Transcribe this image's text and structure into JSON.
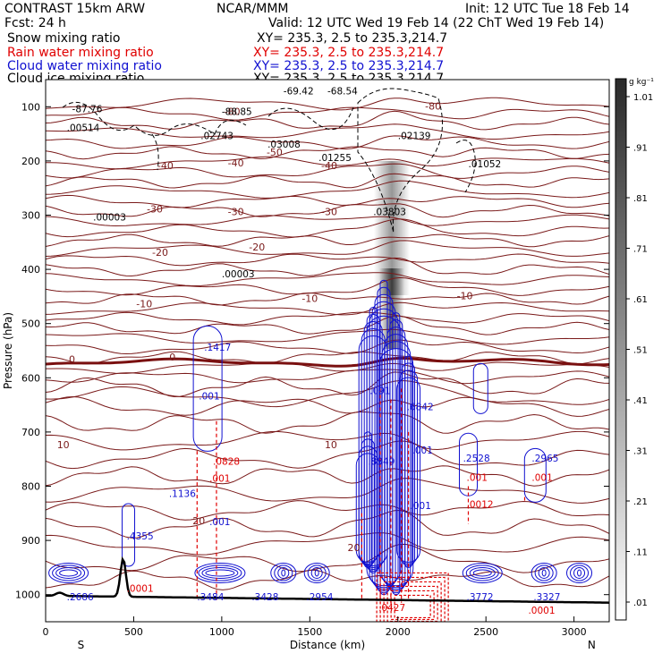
{
  "header": {
    "model": "CONTRAST 15km ARW",
    "agency": "NCAR/MMM",
    "init": "Init: 12 UTC Tue 18 Feb 14",
    "fcst": "Fcst:   24 h",
    "valid": "Valid: 12 UTC Wed 19 Feb 14 (22 ChT Wed 19 Feb 14)",
    "rows": [
      {
        "label": "Snow mixing ratio",
        "xy": "XY= 235.3,  2.5 to 235.3,214.7",
        "color": "#000000"
      },
      {
        "label": "Rain water mixing ratio",
        "xy": "XY= 235.3,  2.5 to 235.3,214.7",
        "color": "#e00000"
      },
      {
        "label": "Cloud water mixing ratio",
        "xy": "XY= 235.3,  2.5 to 235.3,214.7",
        "color": "#1010d0"
      },
      {
        "label": "Cloud ice mixing ratio",
        "xy": "XY= 235.3,  2.5 to 235.3,214.7",
        "color": "#000000"
      }
    ]
  },
  "chart_data": {
    "type": "cross-section",
    "title": "CONTRAST 15km ARW vertical cross-section",
    "xlabel": "Distance (km)",
    "ylabel": "Pressure (hPa)",
    "xlim": [
      0,
      3200
    ],
    "ylim": [
      1050,
      50
    ],
    "x_ticks": [
      0,
      500,
      1000,
      1500,
      2000,
      2500,
      3000
    ],
    "y_ticks": [
      100,
      200,
      300,
      400,
      500,
      600,
      700,
      800,
      900,
      1000
    ],
    "x_ends": {
      "left": "S",
      "right": "N"
    },
    "colorbar": {
      "unit": "g kg⁻¹",
      "ticks": [
        ".01",
        ".11",
        ".21",
        ".31",
        ".41",
        ".51",
        ".61",
        ".71",
        ".81",
        ".91",
        "1.01"
      ]
    },
    "temperature_contour_labels": [
      "-80",
      "-50",
      "-40",
      "-30",
      "-20",
      "-10",
      "0",
      "10",
      "20"
    ],
    "extrema_labels": [
      {
        "x": 150,
        "p": 110,
        "text": "-87.76"
      },
      {
        "x": 1000,
        "p": 115,
        "text": "-88.85"
      },
      {
        "x": 1350,
        "p": 77,
        "text": "-69.42"
      },
      {
        "x": 1600,
        "p": 77,
        "text": "-68.54"
      },
      {
        "x": 120,
        "p": 145,
        "text": ".00514"
      },
      {
        "x": 880,
        "p": 160,
        "text": ".02743"
      },
      {
        "x": 1260,
        "p": 175,
        "text": ".03008"
      },
      {
        "x": 1550,
        "p": 200,
        "text": ".01255"
      },
      {
        "x": 2000,
        "p": 160,
        "text": ".02139"
      },
      {
        "x": 2400,
        "p": 212,
        "text": ".01052"
      },
      {
        "x": 270,
        "p": 310,
        "text": ".00003"
      },
      {
        "x": 1860,
        "p": 300,
        "text": ".03803"
      },
      {
        "x": 1000,
        "p": 415,
        "text": ".00003"
      },
      {
        "x": 900,
        "p": 550,
        "text": ".1417"
      },
      {
        "x": 870,
        "p": 640,
        "text": ".001"
      },
      {
        "x": 950,
        "p": 760,
        "text": ".0828"
      },
      {
        "x": 930,
        "p": 792,
        "text": ".001"
      },
      {
        "x": 700,
        "p": 820,
        "text": ".1136"
      },
      {
        "x": 930,
        "p": 872,
        "text": ".001"
      },
      {
        "x": 460,
        "p": 898,
        "text": ".4355"
      },
      {
        "x": 460,
        "p": 995,
        "text": ".0001"
      },
      {
        "x": 120,
        "p": 1010,
        "text": ".2686"
      },
      {
        "x": 860,
        "p": 1010,
        "text": ".3484"
      },
      {
        "x": 1170,
        "p": 1010,
        "text": ".3428"
      },
      {
        "x": 1480,
        "p": 1010,
        "text": ".2954"
      },
      {
        "x": 1840,
        "p": 630,
        "text": ".091"
      },
      {
        "x": 2050,
        "p": 660,
        "text": ".6842"
      },
      {
        "x": 1830,
        "p": 760,
        "text": ".8349"
      },
      {
        "x": 2080,
        "p": 740,
        "text": ".001"
      },
      {
        "x": 2070,
        "p": 842,
        "text": ".001"
      },
      {
        "x": 1890,
        "p": 1030,
        "text": ".0427"
      },
      {
        "x": 2370,
        "p": 755,
        "text": ".2528"
      },
      {
        "x": 2390,
        "p": 790,
        "text": ".001"
      },
      {
        "x": 2390,
        "p": 840,
        "text": ".0012"
      },
      {
        "x": 2760,
        "p": 755,
        "text": ".2965"
      },
      {
        "x": 2760,
        "p": 790,
        "text": ".001"
      },
      {
        "x": 2390,
        "p": 1010,
        "text": ".3772"
      },
      {
        "x": 2770,
        "p": 1010,
        "text": ".3327"
      },
      {
        "x": 2740,
        "p": 1035,
        "text": ".0001"
      }
    ]
  }
}
